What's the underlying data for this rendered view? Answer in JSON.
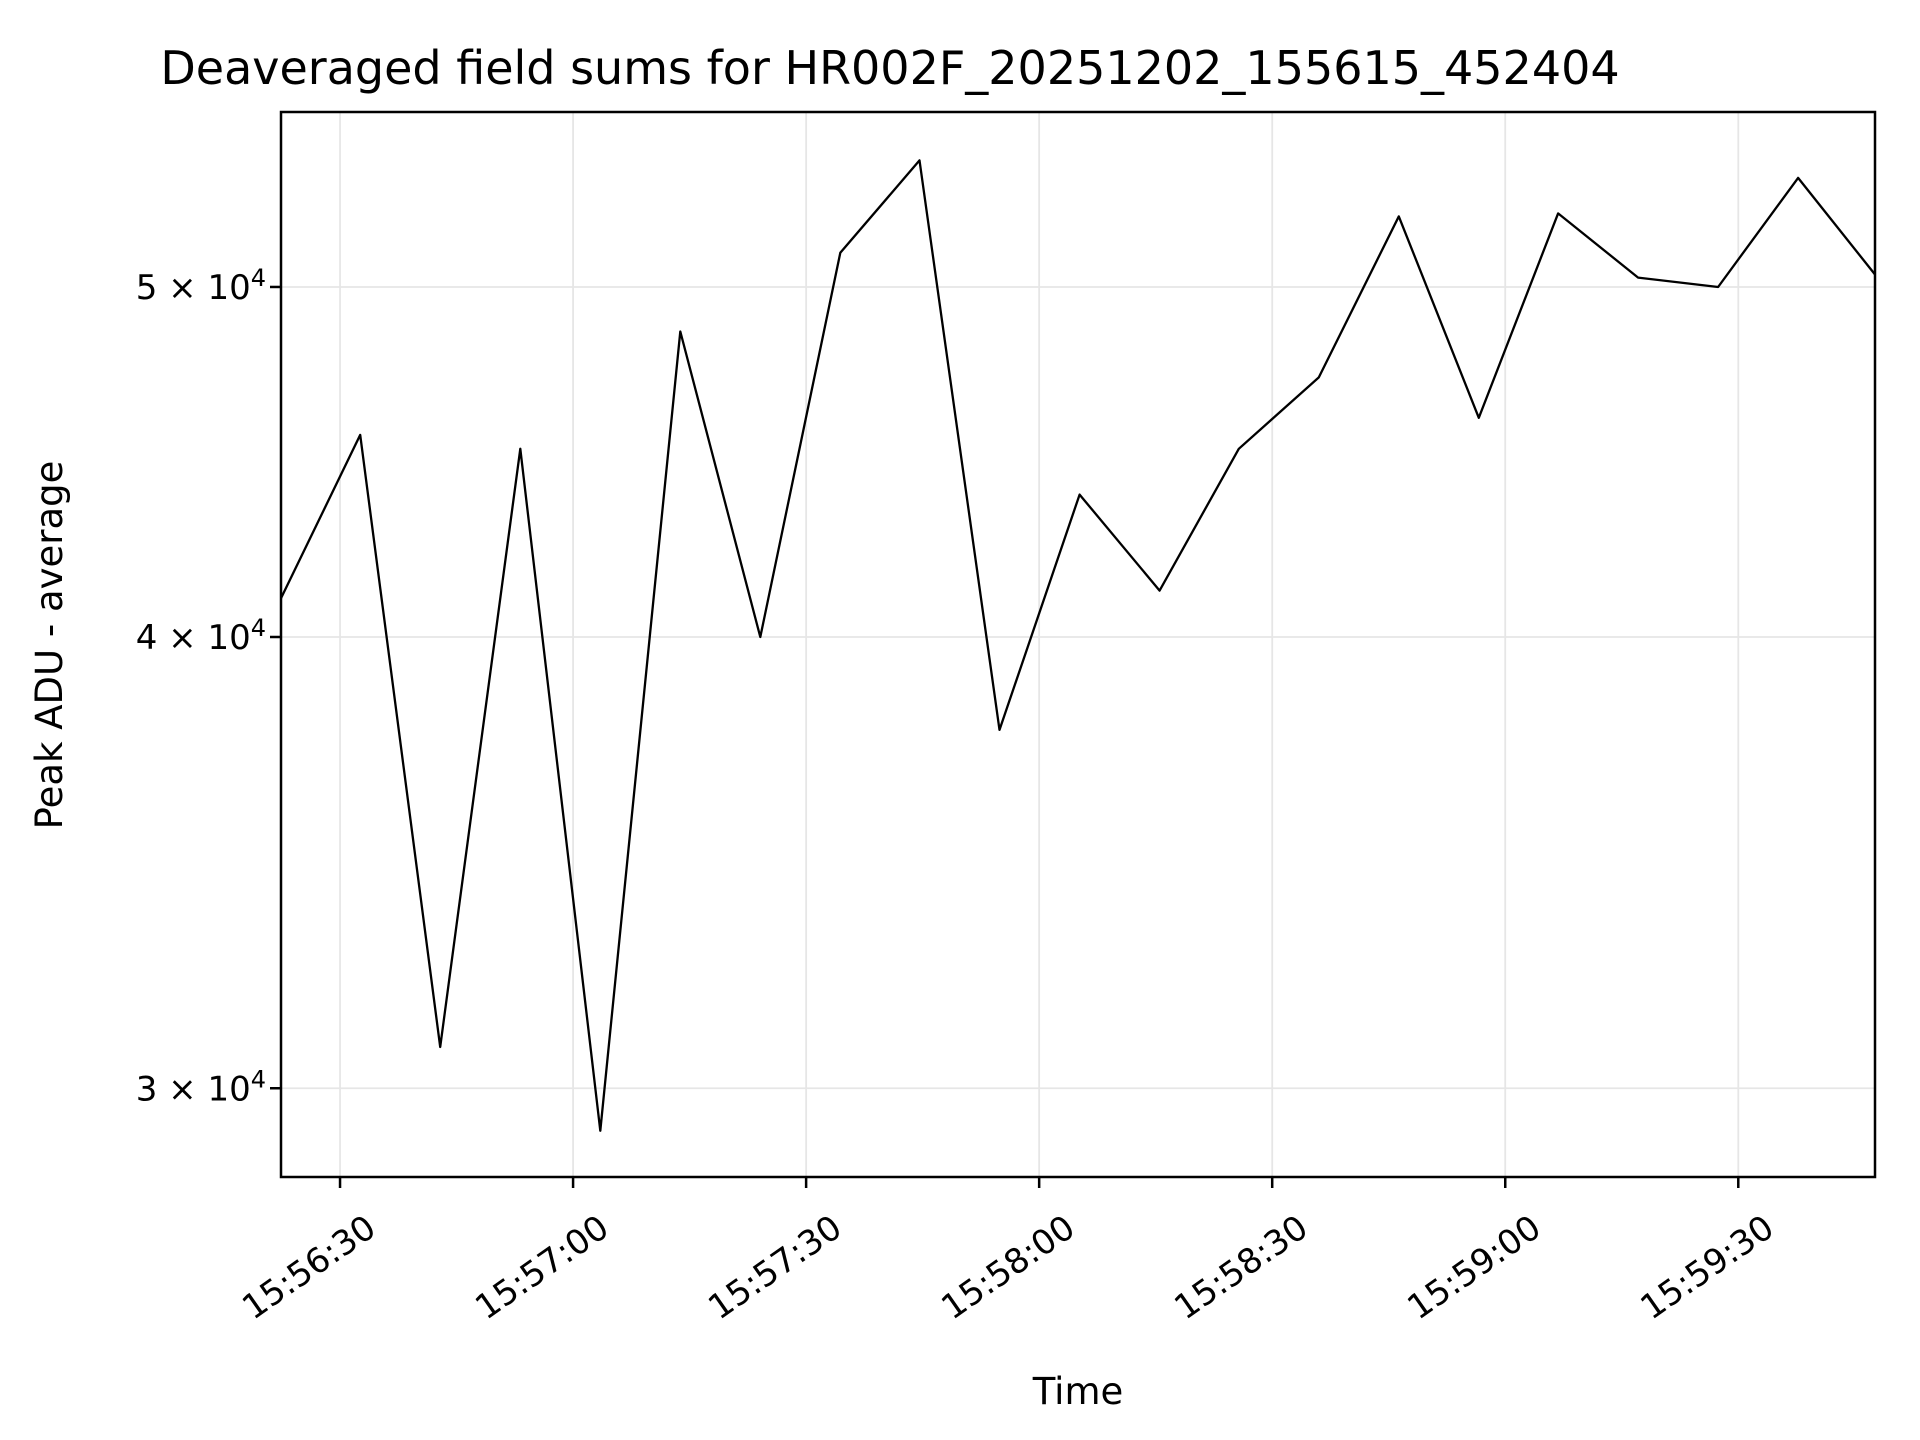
{
  "chart_data": {
    "type": "line",
    "title": "Deaveraged field sums for HR002F_20251202_155615_452404",
    "xlabel": "Time",
    "ylabel": "Peak ADU - average",
    "yscale": "log",
    "grid": true,
    "legend": "none",
    "line_color": "#000000",
    "grid_color": "#e6e6e6",
    "x_tick_labels": [
      "15:56:30",
      "15:57:00",
      "15:57:30",
      "15:58:00",
      "15:58:30",
      "15:59:00",
      "15:59:30"
    ],
    "x_tick_seconds": [
      0,
      30,
      60,
      90,
      120,
      150,
      180
    ],
    "y_tick_labels": [
      "3 × 10⁴",
      "4 × 10⁴",
      "5 × 10⁴"
    ],
    "y_ticks": [
      {
        "mantissa": "3",
        "value": 30000
      },
      {
        "mantissa": "4",
        "value": 40000
      },
      {
        "mantissa": "5",
        "value": 50000
      }
    ],
    "y_tick_exponent": "4",
    "times_part": "× 10",
    "x_range_seconds": [
      -7.6,
      197.6
    ],
    "y_range": [
      28350,
      55900
    ],
    "points": [
      {
        "time": "15:56:22",
        "seconds": -7.6,
        "value": 41000
      },
      {
        "time": "15:56:33",
        "seconds": 2.6,
        "value": 45500
      },
      {
        "time": "15:56:43",
        "seconds": 12.9,
        "value": 30800
      },
      {
        "time": "15:56:53",
        "seconds": 23.2,
        "value": 45100
      },
      {
        "time": "15:57:04",
        "seconds": 33.5,
        "value": 29200
      },
      {
        "time": "15:57:14",
        "seconds": 43.8,
        "value": 48600
      },
      {
        "time": "15:57:24",
        "seconds": 54.1,
        "value": 40000
      },
      {
        "time": "15:57:34",
        "seconds": 64.4,
        "value": 51100
      },
      {
        "time": "15:57:45",
        "seconds": 74.6,
        "value": 54200
      },
      {
        "time": "15:57:55",
        "seconds": 84.9,
        "value": 37700
      },
      {
        "time": "15:58:05",
        "seconds": 95.2,
        "value": 43800
      },
      {
        "time": "15:58:15",
        "seconds": 105.5,
        "value": 41200
      },
      {
        "time": "15:58:26",
        "seconds": 115.7,
        "value": 45100
      },
      {
        "time": "15:58:36",
        "seconds": 126.0,
        "value": 47200
      },
      {
        "time": "15:58:46",
        "seconds": 136.3,
        "value": 52300
      },
      {
        "time": "15:58:57",
        "seconds": 146.6,
        "value": 46000
      },
      {
        "time": "15:59:07",
        "seconds": 156.8,
        "value": 52400
      },
      {
        "time": "15:59:17",
        "seconds": 167.1,
        "value": 50300
      },
      {
        "time": "15:59:27",
        "seconds": 177.4,
        "value": 50000
      },
      {
        "time": "15:59:38",
        "seconds": 187.7,
        "value": 53600
      },
      {
        "time": "15:59:48",
        "seconds": 197.6,
        "value": 50400
      }
    ]
  }
}
